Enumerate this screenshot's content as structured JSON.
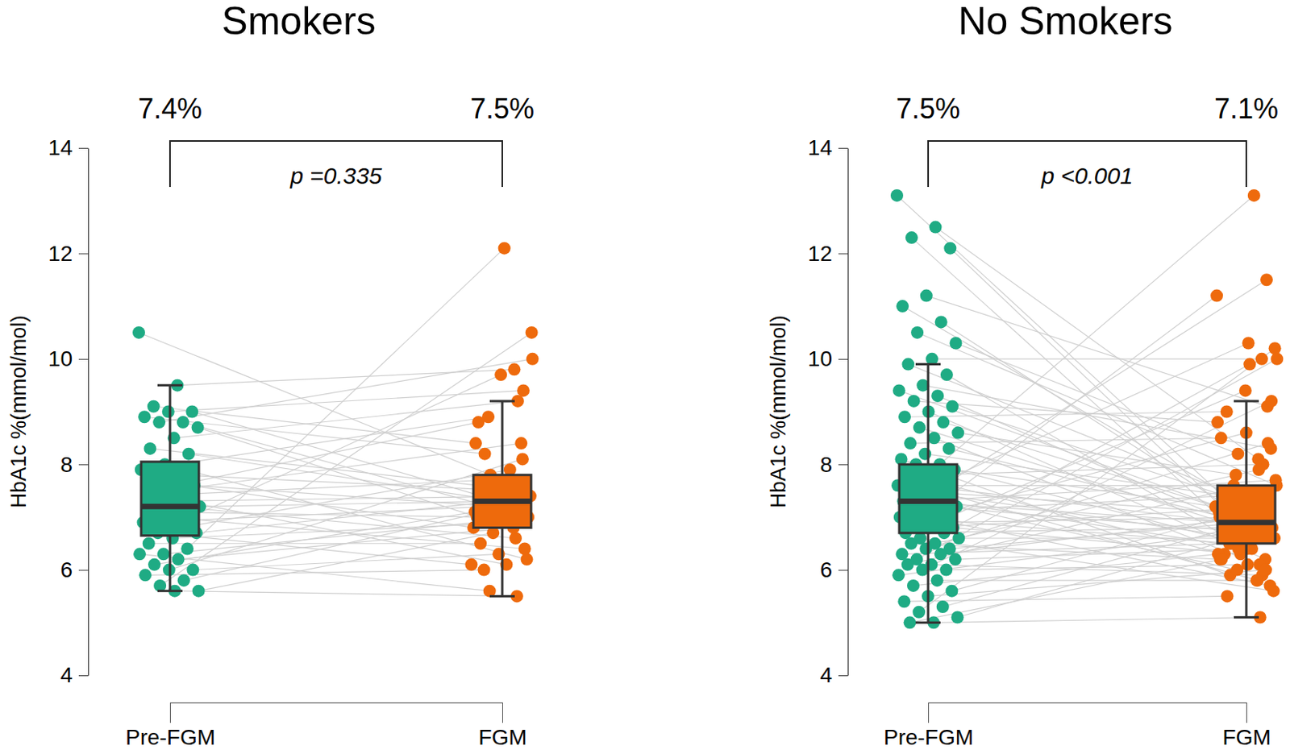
{
  "chart_data": [
    {
      "type": "box",
      "title": "Smokers",
      "y_label": "HbA1c %(mmol/mol)",
      "categories": [
        "Pre-FGM",
        "FGM"
      ],
      "colors": [
        "#1fab84",
        "#ee6a0c"
      ],
      "ylim": [
        4,
        14
      ],
      "yticks": [
        4,
        6,
        8,
        10,
        12,
        14
      ],
      "mean_labels": [
        "7.4%",
        "7.5%"
      ],
      "p_value": "p =0.335",
      "boxes": [
        {
          "whisker_low": 5.6,
          "q1": 6.65,
          "median": 7.2,
          "q3": 8.05,
          "whisker_high": 9.5
        },
        {
          "whisker_low": 5.5,
          "q1": 6.8,
          "median": 7.3,
          "q3": 7.8,
          "whisker_high": 9.2
        }
      ],
      "values": [
        [
          10.5,
          9.5,
          9.1,
          9.0,
          9.0,
          8.9,
          8.8,
          8.8,
          8.7,
          8.5,
          8.3,
          8.2,
          8.0,
          7.9,
          7.8,
          7.7,
          7.6,
          7.5,
          7.4,
          7.3,
          7.3,
          7.2,
          7.2,
          7.1,
          7.0,
          7.0,
          6.9,
          6.8,
          6.7,
          6.7,
          6.6,
          6.5,
          6.4,
          6.3,
          6.3,
          6.2,
          6.1,
          6.0,
          6.0,
          5.9,
          5.8,
          5.7,
          5.6,
          5.6,
          7.5
        ],
        [
          7.8,
          9.8,
          8.4,
          7.3,
          9.4,
          8.2,
          7.1,
          10.0,
          6.9,
          9.2,
          7.6,
          7.3,
          6.2,
          8.9,
          7.5,
          6.8,
          7.2,
          8.4,
          7.7,
          6.1,
          7.4,
          7.3,
          6.6,
          7.0,
          9.7,
          6.4,
          7.2,
          7.9,
          6.1,
          7.3,
          6.9,
          6.5,
          12.1,
          7.0,
          5.6,
          6.8,
          7.1,
          6.3,
          8.1,
          6.0,
          7.2,
          10.5,
          6.7,
          5.5,
          8.8
        ]
      ]
    },
    {
      "type": "box",
      "title": "No Smokers",
      "y_label": "HbA1c %(mmol/mol)",
      "categories": [
        "Pre-FGM",
        "FGM"
      ],
      "colors": [
        "#1fab84",
        "#ee6a0c"
      ],
      "ylim": [
        4,
        14
      ],
      "yticks": [
        4,
        6,
        8,
        10,
        12,
        14
      ],
      "mean_labels": [
        "7.5%",
        "7.1%"
      ],
      "p_value": "p <0.001",
      "boxes": [
        {
          "whisker_low": 5.0,
          "q1": 6.7,
          "median": 7.3,
          "q3": 8.0,
          "whisker_high": 9.9
        },
        {
          "whisker_low": 5.1,
          "q1": 6.5,
          "median": 6.9,
          "q3": 7.6,
          "whisker_high": 9.2
        }
      ],
      "values": [
        [
          13.1,
          12.5,
          12.3,
          12.1,
          11.2,
          11.0,
          10.7,
          10.5,
          10.3,
          10.0,
          9.9,
          9.7,
          9.5,
          9.4,
          9.3,
          9.2,
          9.1,
          9.0,
          8.9,
          8.8,
          8.7,
          8.6,
          8.5,
          8.4,
          8.3,
          8.2,
          8.1,
          8.0,
          8.0,
          7.9,
          7.8,
          7.8,
          7.7,
          7.6,
          7.6,
          7.5,
          7.5,
          7.4,
          7.4,
          7.3,
          7.3,
          7.3,
          7.2,
          7.2,
          7.1,
          7.1,
          7.0,
          7.0,
          6.9,
          6.9,
          6.8,
          6.8,
          6.7,
          6.7,
          6.6,
          6.6,
          6.5,
          6.5,
          6.4,
          6.4,
          6.3,
          6.3,
          6.2,
          6.2,
          6.1,
          6.1,
          6.0,
          6.0,
          5.9,
          5.8,
          5.7,
          5.6,
          5.5,
          5.4,
          5.3,
          5.2,
          5.1,
          5.0,
          5.0,
          7.0
        ],
        [
          7.2,
          8.1,
          7.0,
          6.8,
          9.1,
          7.4,
          6.9,
          7.6,
          8.2,
          10.0,
          7.5,
          6.4,
          8.3,
          7.1,
          6.7,
          8.8,
          7.3,
          6.2,
          9.0,
          7.0,
          6.6,
          7.8,
          6.1,
          8.5,
          6.9,
          7.3,
          5.9,
          13.1,
          7.2,
          6.5,
          8.0,
          6.3,
          10.3,
          6.8,
          7.6,
          5.8,
          7.1,
          6.6,
          11.5,
          6.9,
          6.4,
          7.7,
          6.0,
          6.7,
          7.4,
          8.6,
          5.7,
          6.5,
          7.0,
          11.2,
          6.3,
          7.2,
          6.8,
          9.9,
          5.6,
          6.6,
          7.9,
          6.2,
          6.9,
          8.4,
          6.5,
          7.0,
          10.0,
          6.4,
          5.9,
          7.5,
          6.1,
          9.2,
          6.7,
          5.8,
          6.3,
          7.1,
          6.0,
          5.5,
          6.9,
          10.2,
          6.6,
          5.1,
          6.2,
          9.4
        ]
      ]
    }
  ]
}
